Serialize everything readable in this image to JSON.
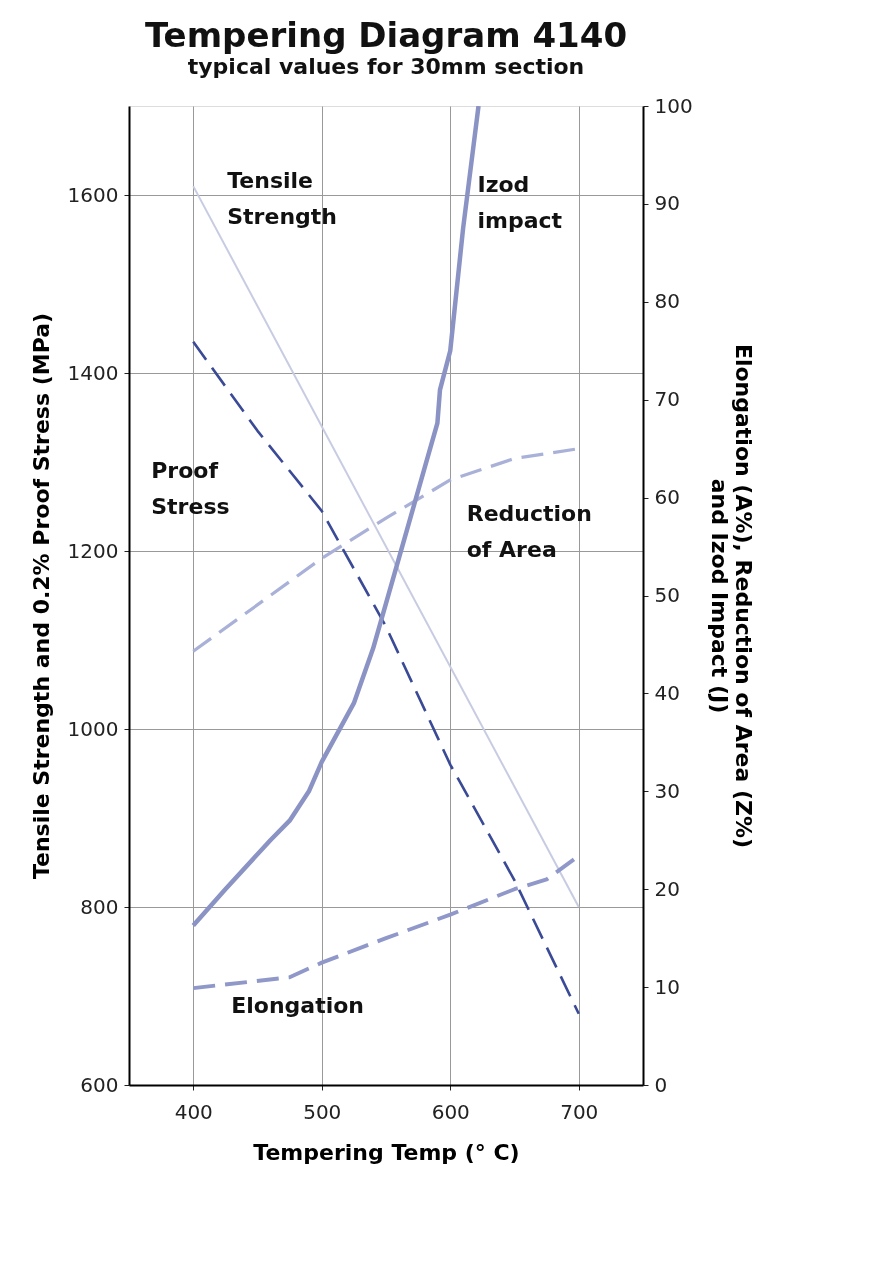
{
  "chart_data": {
    "type": "line",
    "title": "Tempering Diagram 4140",
    "subtitle": "typical values for 30mm section",
    "xlabel": "Tempering Temp (° C)",
    "ylabel": "Tensile Strength and 0.2% Proof Stress (MPa)",
    "y2label": "Elongation (A%), Reduction of Area (Z%)\nand Izod Impact (J)",
    "xlim": [
      350,
      750
    ],
    "xticks": [
      400,
      500,
      600,
      700
    ],
    "ylim": [
      600,
      1700
    ],
    "yticks": [
      600,
      800,
      1000,
      1200,
      1400,
      1600
    ],
    "y2lim": [
      0,
      100
    ],
    "y2ticks": [
      0,
      10,
      20,
      30,
      40,
      50,
      60,
      70,
      80,
      90,
      100
    ],
    "grid": true,
    "series": [
      {
        "name": "Tensile\nStrength",
        "color": "#c8cce3",
        "line_style": "solid",
        "x": [
          400,
          700
        ],
        "values": [
          1610,
          800
        ]
      },
      {
        "name": "Proof\nStress",
        "color": "#3a4a96",
        "line_style": "dashed",
        "x": [
          400,
          450,
          500,
          550,
          600,
          650,
          700
        ],
        "values": [
          1435,
          1335,
          1245,
          1115,
          960,
          830,
          680
        ]
      },
      {
        "name": "Reduction\nof Area",
        "color": "#a9b1d8",
        "line_style": "dashed",
        "axis": "y2",
        "x": [
          400,
          500,
          550,
          600,
          650,
          700
        ],
        "values": [
          44.3,
          53.8,
          57.9,
          61.8,
          64,
          65
        ]
      },
      {
        "name": "Elongation",
        "color": "#8f98c9",
        "line_style": "dashed",
        "axis": "y2",
        "x": [
          400,
          475,
          500,
          550,
          600,
          650,
          675,
          700
        ],
        "values": [
          9.9,
          11,
          12.5,
          15,
          17.4,
          20,
          21,
          23.4
        ]
      },
      {
        "name": "Izod\nimpact",
        "color": "#8a93c4",
        "line_style": "solid",
        "axis": "y2",
        "x": [
          400,
          425,
          460,
          475,
          490,
          500,
          525,
          540,
          560,
          580,
          590,
          592,
          600,
          610,
          622
        ],
        "values": [
          16.3,
          20,
          25,
          27,
          30,
          33,
          39,
          44.6,
          53.8,
          63,
          67.6,
          71,
          75,
          87.5,
          100
        ]
      }
    ]
  }
}
